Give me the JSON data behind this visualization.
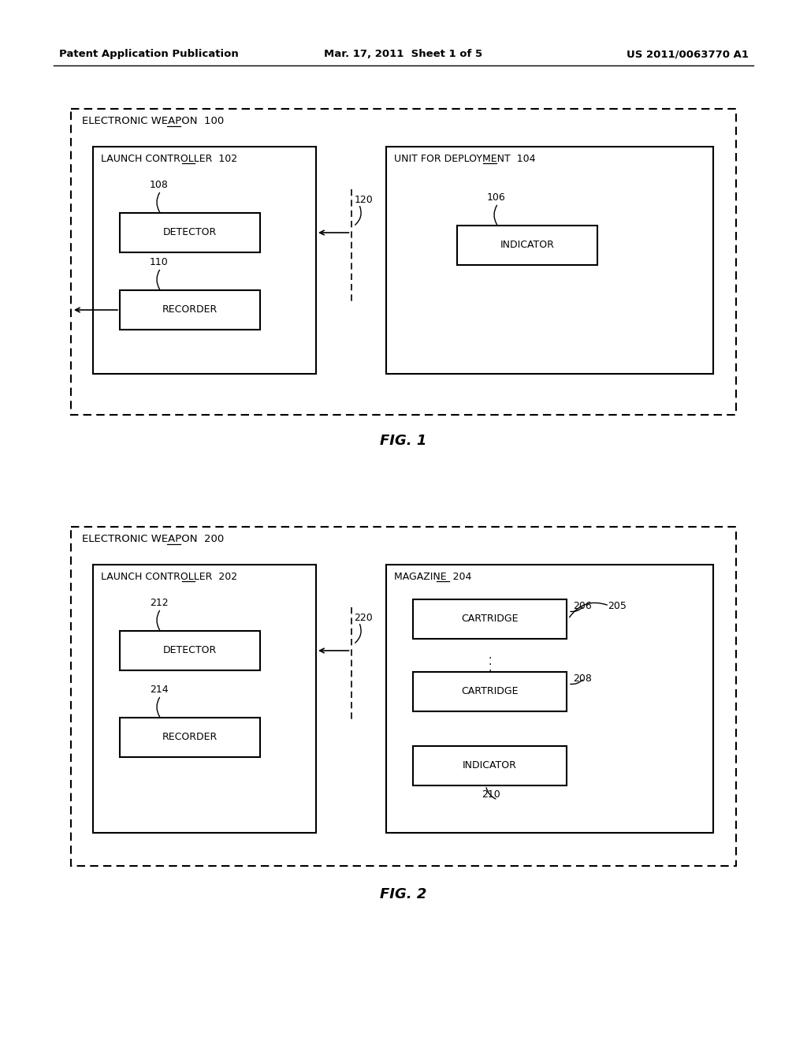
{
  "bg_color": "#ffffff",
  "header_left": "Patent Application Publication",
  "header_mid": "Mar. 17, 2011  Sheet 1 of 5",
  "header_right": "US 2011/0063770 A1",
  "fig1": {
    "caption": "FIG. 1",
    "outer_label": "ELECTRONIC WEAPON",
    "outer_num": "100",
    "lc_label": "LAUNCH CONTROLLER",
    "lc_num": "102",
    "ufd_label": "UNIT FOR DEPLOYMENT",
    "ufd_num": "104",
    "detector_label": "DETECTOR",
    "detector_num": "108",
    "recorder_label": "RECORDER",
    "recorder_num": "110",
    "indicator_label": "INDICATOR",
    "indicator_num": "106",
    "arrow_num": "120"
  },
  "fig2": {
    "caption": "FIG. 2",
    "outer_label": "ELECTRONIC WEAPON",
    "outer_num": "200",
    "lc_label": "LAUNCH CONTROLLER",
    "lc_num": "202",
    "mag_label": "MAGAZINE",
    "mag_num": "204",
    "detector_label": "DETECTOR",
    "detector_num": "212",
    "recorder_label": "RECORDER",
    "recorder_num": "214",
    "cartridge1_label": "CARTRIDGE",
    "cartridge1_num": "206",
    "cartridge1_num2": "205",
    "cartridge2_label": "CARTRIDGE",
    "cartridge2_num": "208",
    "indicator_label": "INDICATOR",
    "indicator_num": "210",
    "arrow_num": "220"
  }
}
